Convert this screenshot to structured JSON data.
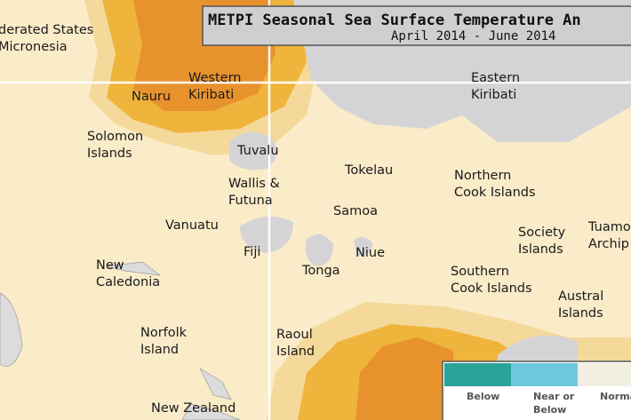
{
  "header": {
    "title": "METPI Seasonal Sea Surface Temperature An",
    "subtitle": "April 2014 - June 2014"
  },
  "labels": [
    {
      "lines": [
        "derated States",
        "Micronesia"
      ]
    },
    {
      "lines": [
        "Nauru"
      ]
    },
    {
      "lines": [
        "Western",
        "Kiribati"
      ]
    },
    {
      "lines": [
        "Eastern",
        "Kiribati"
      ]
    },
    {
      "lines": [
        "Solomon",
        "Islands"
      ]
    },
    {
      "lines": [
        "Tuvalu"
      ]
    },
    {
      "lines": [
        "Tokelau"
      ]
    },
    {
      "lines": [
        "Northern",
        "Cook Islands"
      ]
    },
    {
      "lines": [
        "Wallis &",
        "Futuna"
      ]
    },
    {
      "lines": [
        "Samoa"
      ]
    },
    {
      "lines": [
        "Vanuatu"
      ]
    },
    {
      "lines": [
        "Fiji"
      ]
    },
    {
      "lines": [
        "Niue"
      ]
    },
    {
      "lines": [
        "Tonga"
      ]
    },
    {
      "lines": [
        "Society",
        "Islands"
      ]
    },
    {
      "lines": [
        "Tuamo",
        "Archip"
      ]
    },
    {
      "lines": [
        "New",
        "Caledonia"
      ]
    },
    {
      "lines": [
        "Southern",
        "Cook Islands"
      ]
    },
    {
      "lines": [
        "Austral",
        "Islands"
      ]
    },
    {
      "lines": [
        "Norfolk",
        "Island"
      ]
    },
    {
      "lines": [
        "Raoul",
        "Island"
      ]
    },
    {
      "lines": [
        "New Zealand"
      ]
    }
  ],
  "legend": [
    {
      "lines": [
        "Below"
      ],
      "color": "#2aa39a"
    },
    {
      "lines": [
        "Near or",
        "Below"
      ],
      "color": "#6ec8dc"
    },
    {
      "lines": [
        "Norma"
      ],
      "color": "#f1efe0"
    }
  ]
}
